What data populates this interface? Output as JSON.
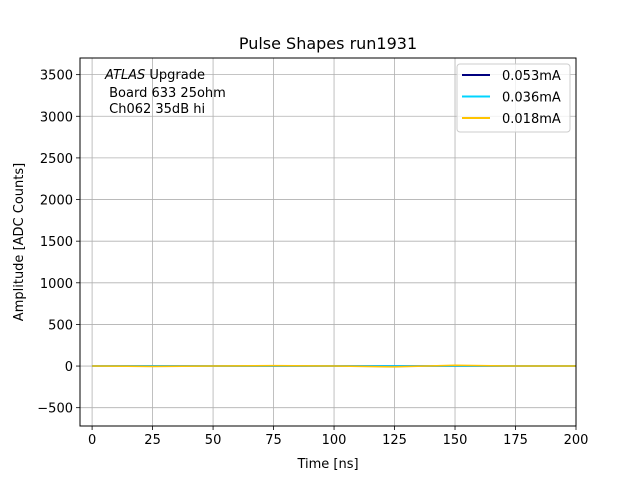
{
  "chart_data": {
    "type": "line",
    "title": "Pulse Shapes run1931",
    "xlabel": "Time [ns]",
    "ylabel": "Amplitude [ADC Counts]",
    "xlim": [
      -5,
      200
    ],
    "ylim": [
      -720,
      3700
    ],
    "xticks": [
      0,
      25,
      50,
      75,
      100,
      125,
      150,
      175,
      200
    ],
    "xtick_labels": [
      "0",
      "25",
      "50",
      "75",
      "100",
      "125",
      "150",
      "175",
      "200"
    ],
    "yticks": [
      -500,
      0,
      500,
      1000,
      1500,
      2000,
      2500,
      3000,
      3500
    ],
    "ytick_labels": [
      "−500",
      "0",
      "500",
      "1000",
      "1500",
      "2000",
      "2500",
      "3000",
      "3500"
    ],
    "grid": true,
    "legend_position": "top-right",
    "annotation": {
      "italic": "ATLAS",
      "rest": " Upgrade",
      "line2": " Board 633 25ohm",
      "line3": " Ch062 35dB hi"
    },
    "series": [
      {
        "name": "0.053mA",
        "color": "#00007f",
        "x": [
          0,
          25,
          50,
          75,
          100,
          125,
          150,
          175,
          200
        ],
        "y": [
          0,
          0,
          0,
          0,
          0,
          0,
          0,
          0,
          0
        ]
      },
      {
        "name": "0.036mA",
        "color": "#00d4ff",
        "x": [
          0,
          25,
          50,
          75,
          100,
          125,
          150,
          175,
          200
        ],
        "y": [
          0,
          0,
          0,
          0,
          0,
          0,
          0,
          0,
          0
        ]
      },
      {
        "name": "0.018mA",
        "color": "#ffc400",
        "x": [
          0,
          25,
          50,
          75,
          100,
          125,
          150,
          175,
          200
        ],
        "y": [
          0,
          -5,
          0,
          5,
          0,
          -10,
          10,
          0,
          0
        ]
      }
    ]
  }
}
